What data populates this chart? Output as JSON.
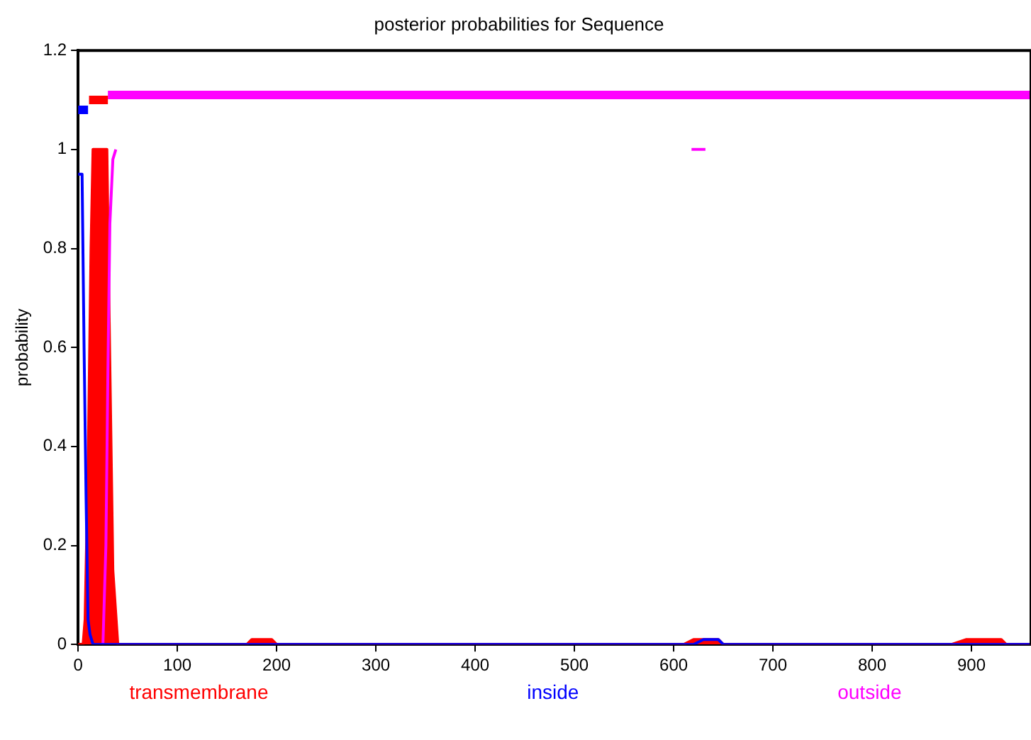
{
  "chart_data": {
    "type": "line",
    "title": "posterior probabilities for Sequence",
    "ylabel": "probability",
    "xlim": [
      0,
      960
    ],
    "xticks": [
      0,
      100,
      200,
      300,
      400,
      500,
      600,
      700,
      800,
      900
    ],
    "ylim": [
      0,
      1.2
    ],
    "yticks": [
      0,
      0.2,
      0.4,
      0.6,
      0.8,
      1,
      1.2
    ],
    "grid": false,
    "legend": "bottom",
    "marker": "none",
    "series": [
      {
        "name": "transmembrane",
        "type": "area",
        "color": "#ff0000",
        "x": [
          0,
          5,
          7,
          10,
          13,
          15,
          29,
          31,
          35,
          40,
          45,
          170,
          175,
          195,
          200,
          610,
          620,
          645,
          650,
          880,
          895,
          930,
          935,
          960
        ],
        "values": [
          0,
          0,
          0.05,
          0.35,
          0.8,
          1,
          1,
          0.7,
          0.15,
          0,
          0,
          0,
          0.01,
          0.01,
          0,
          0,
          0.01,
          0.01,
          0,
          0,
          0.01,
          0.01,
          0,
          0
        ]
      },
      {
        "name": "inside",
        "color": "#0000ff",
        "x": [
          0,
          4,
          6,
          8,
          10,
          12,
          15,
          620,
          630,
          645,
          650,
          960
        ],
        "values": [
          0.95,
          0.95,
          0.6,
          0.3,
          0.05,
          0.02,
          0,
          0,
          0.01,
          0.01,
          0,
          0
        ]
      },
      {
        "name": "outside",
        "color": "#ff00ff",
        "x": [
          25,
          28,
          30,
          32,
          35,
          38,
          40,
          618,
          632
        ],
        "values": [
          0,
          0.2,
          0.55,
          0.85,
          0.98,
          1,
          null,
          1,
          1
        ]
      },
      {
        "color": "#0000ff",
        "x": [
          0,
          10
        ],
        "values": [
          1.08,
          1.08
        ]
      },
      {
        "color": "#ff0000",
        "x": [
          11,
          30
        ],
        "values": [
          1.1,
          1.1
        ]
      },
      {
        "color": "#ff00ff",
        "x": [
          30,
          960
        ],
        "values": [
          1.11,
          1.11
        ]
      }
    ]
  }
}
